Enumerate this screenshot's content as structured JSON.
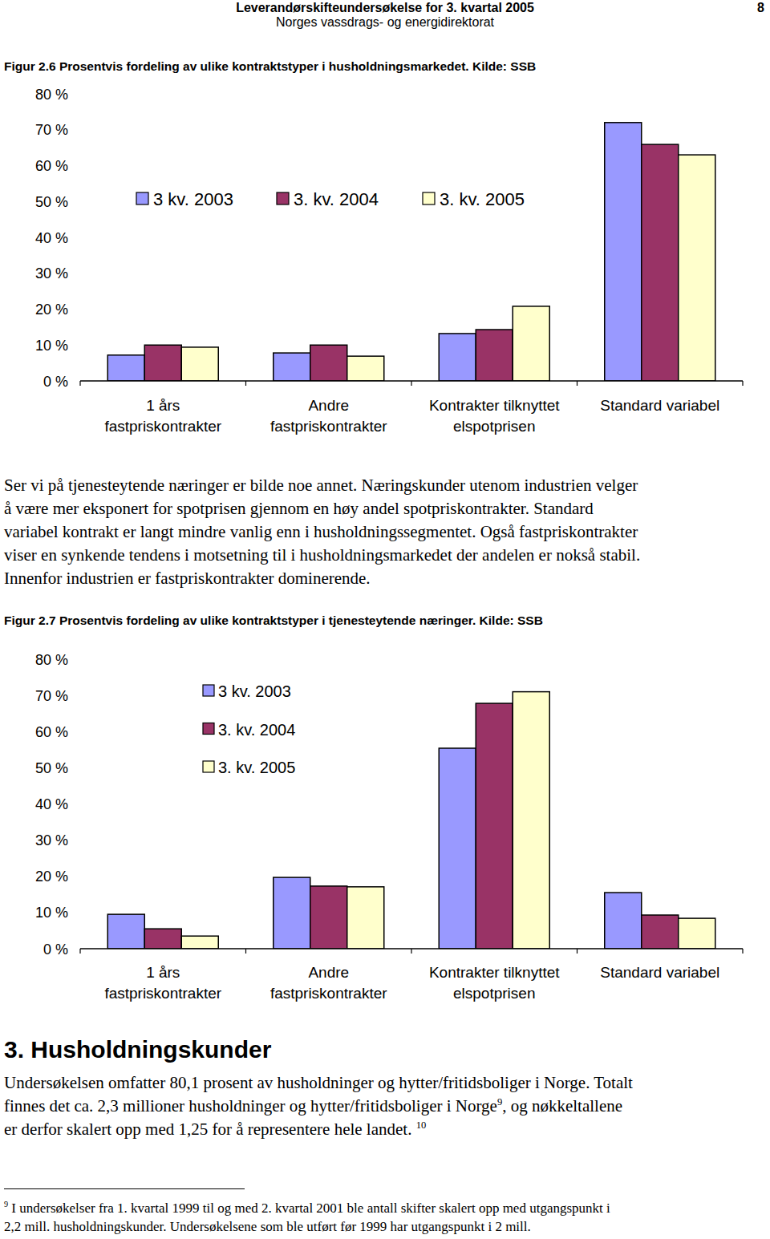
{
  "header": {
    "title": "Leverandørskifteundersøkelse for 3. kvartal 2005",
    "organization": "Norges vassdrags- og energidirektorat",
    "page": "8"
  },
  "chart_data": [
    {
      "type": "bar",
      "title": "Figur 2.6 Prosentvis fordeling av ulike kontraktstyper i husholdningsmarkedet. Kilde: SSB",
      "categories": [
        "1 års\nfastpriskontrakter",
        "Andre\nfastpriskontrakter",
        "Kontrakter tilknyttet\nelspotprisen",
        "Standard variabel"
      ],
      "series": [
        {
          "name": "3 kv. 2003",
          "color": "#9999ff",
          "values": [
            7.2,
            7.8,
            13.2,
            72.0
          ]
        },
        {
          "name": "3. kv. 2004",
          "color": "#993366",
          "values": [
            10.0,
            10.0,
            14.3,
            65.9
          ]
        },
        {
          "name": "3. kv. 2005",
          "color": "#ffffcc",
          "values": [
            9.4,
            6.9,
            20.8,
            63.0
          ]
        }
      ],
      "ylim": [
        0,
        80
      ],
      "yticks": [
        {
          "value": 0,
          "label": "0 %"
        },
        {
          "value": 10,
          "label": "10 %"
        },
        {
          "value": 20,
          "label": "20 %"
        },
        {
          "value": 30,
          "label": "30 %"
        },
        {
          "value": 40,
          "label": "40 %"
        },
        {
          "value": 50,
          "label": "50 %"
        },
        {
          "value": 60,
          "label": "60 %"
        },
        {
          "value": 70,
          "label": "70 %"
        },
        {
          "value": 80,
          "label": "80 %"
        }
      ],
      "grid": false,
      "legend": "top"
    },
    {
      "type": "bar",
      "title": "Figur 2.7 Prosentvis fordeling av ulike kontraktstyper i tjenesteytende næringer. Kilde: SSB",
      "categories": [
        "1 års\nfastpriskontrakter",
        "Andre\nfastpriskontrakter",
        "Kontrakter tilknyttet\nelspotprisen",
        "Standard variabel"
      ],
      "series": [
        {
          "name": "3 kv. 2003",
          "color": "#9999ff",
          "values": [
            9.5,
            19.7,
            55.4,
            15.5
          ]
        },
        {
          "name": "3. kv. 2004",
          "color": "#993366",
          "values": [
            5.5,
            17.3,
            67.8,
            9.3
          ]
        },
        {
          "name": "3. kv. 2005",
          "color": "#ffffcc",
          "values": [
            3.5,
            17.1,
            71.0,
            8.4
          ]
        }
      ],
      "ylim": [
        0,
        80
      ],
      "yticks": [
        {
          "value": 0,
          "label": "0 %"
        },
        {
          "value": 10,
          "label": "10 %"
        },
        {
          "value": 20,
          "label": "20 %"
        },
        {
          "value": 30,
          "label": "30 %"
        },
        {
          "value": 40,
          "label": "40 %"
        },
        {
          "value": 50,
          "label": "50 %"
        },
        {
          "value": 60,
          "label": "60 %"
        },
        {
          "value": 70,
          "label": "70 %"
        },
        {
          "value": 80,
          "label": "80 %"
        }
      ],
      "grid": false,
      "legend": "top-left"
    }
  ],
  "paragraph": {
    "lines": [
      "Ser vi på tjenesteytende næringer er bilde noe annet. Næringskunder utenom industrien velger",
      "å være mer eksponert for spotprisen gjennom en høy andel spotpriskontrakter. Standard",
      "variabel kontrakt er langt mindre vanlig enn i husholdningssegmentet. Også fastpriskontrakter",
      "viser en synkende tendens i motsetning til i husholdningsmarkedet der andelen er nokså stabil.",
      "Innenfor industrien er fastpriskontrakter dominerende."
    ]
  },
  "section": {
    "heading": "3. Husholdningskunder",
    "lines": [
      [
        "Undersøkelsen omfatter 80,1 prosent av husholdninger og hytter/fritidsboliger i Norge. Totalt"
      ],
      [
        "finnes det ca. 2,3 millioner husholdninger og hytter/fritidsboliger i Norge",
        {
          "ref": "9"
        },
        ", og nøkkeltallene"
      ],
      [
        "er derfor skalert opp med 1,25 for å representere hele landet. ",
        {
          "ref": "10"
        }
      ]
    ]
  },
  "footnote": {
    "number": "9",
    "lines": [
      "I undersøkelser fra 1. kvartal 1999 til og med 2. kvartal 2001 ble antall skifter skalert opp med utgangspunkt i",
      "2,2 mill. husholdningskunder. Undersøkelsene som ble utført før 1999 har utgangspunkt i 2 mill."
    ]
  }
}
